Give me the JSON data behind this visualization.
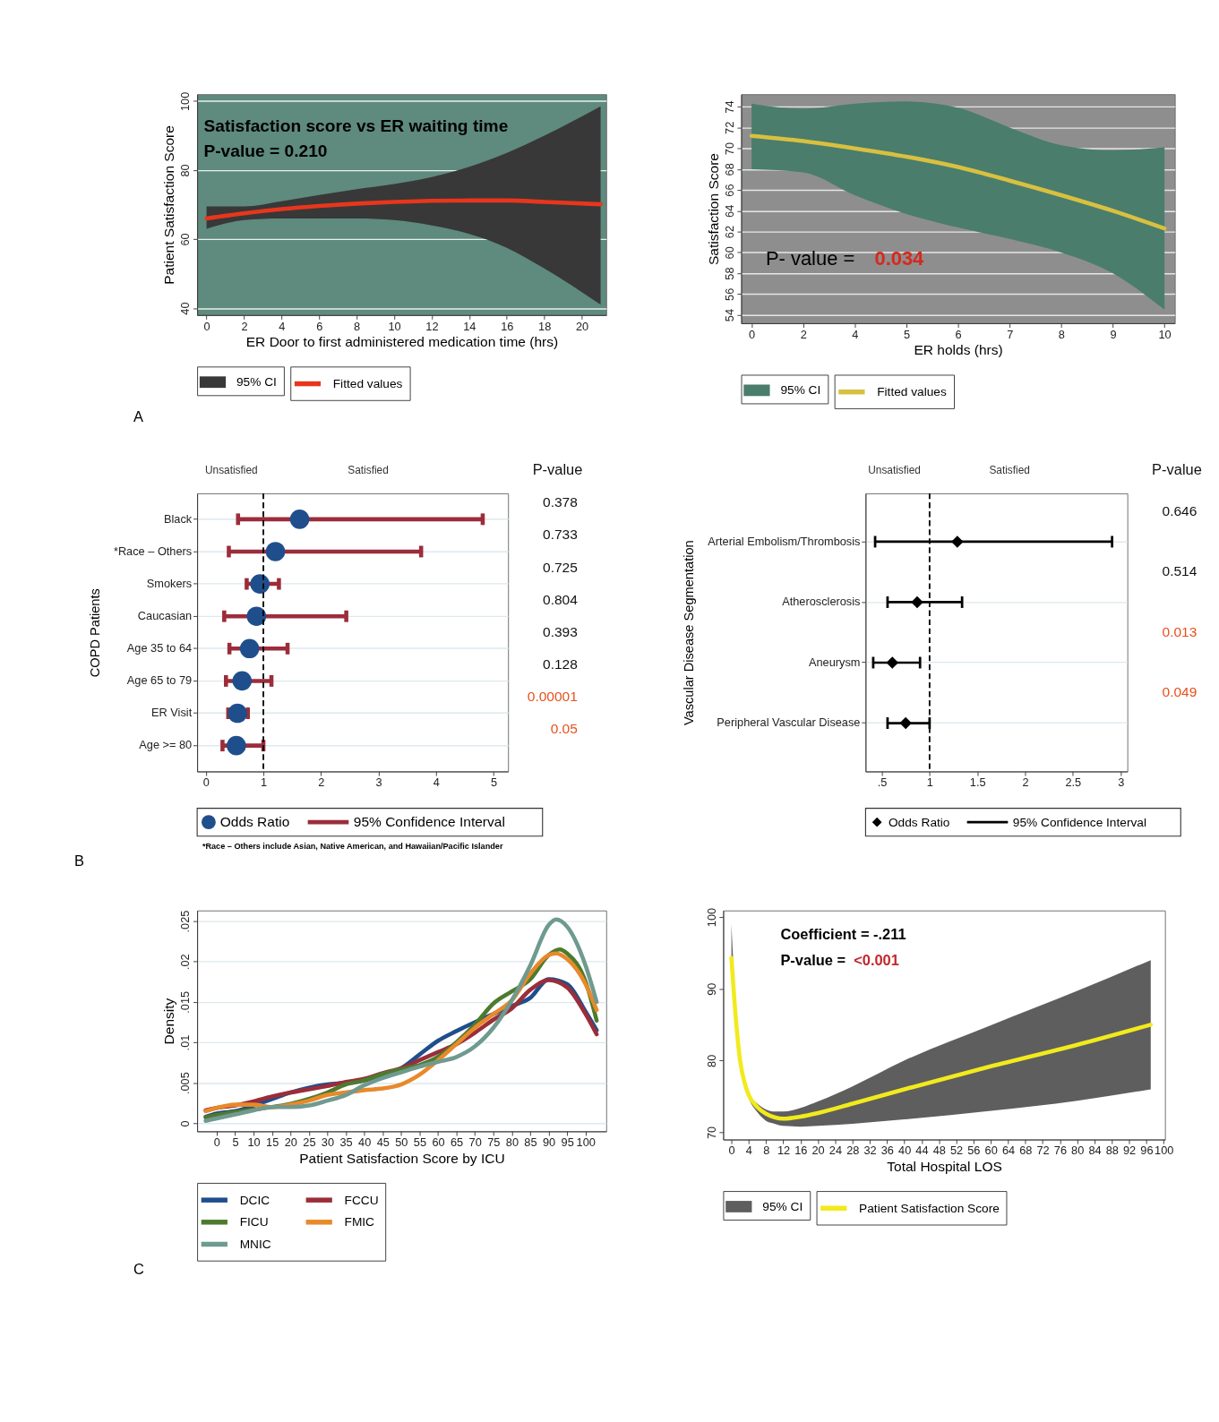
{
  "chart_data": [
    {
      "type": "line",
      "xlabel": "ER Door to first administered medication time (hrs)",
      "ylabel": "Patient Satisfaction Score",
      "x": [
        0,
        2,
        4,
        6,
        8,
        10,
        12,
        14,
        16,
        18,
        21
      ],
      "series": [
        {
          "name": "95% CI",
          "type": "area",
          "color": "#383838",
          "values": [
            null,
            null,
            null,
            null,
            null,
            null,
            null,
            null,
            null,
            null,
            null
          ],
          "lower": [
            63,
            65.5,
            66,
            66,
            66,
            65.5,
            64,
            61.5,
            57.5,
            51.5,
            41
          ],
          "upper": [
            69.5,
            69.5,
            71,
            72.8,
            74.5,
            76,
            78,
            81,
            85,
            90,
            98.5
          ]
        },
        {
          "name": "Fitted values",
          "type": "line",
          "color": "#e8361c",
          "values": [
            66,
            67.5,
            68.7,
            69.6,
            70.3,
            70.8,
            71.1,
            71.2,
            71.2,
            70.8,
            70.1
          ]
        }
      ],
      "xlim": [
        -0.5,
        21.3
      ],
      "xticks": [
        0,
        2,
        4,
        6,
        8,
        10,
        12,
        14,
        16,
        18,
        20
      ],
      "ylim": [
        38,
        102
      ],
      "yticks": [
        40,
        60,
        80,
        100
      ],
      "grid": "y",
      "legend": "bottom",
      "annotations": [
        "Satisfaction score vs ER waiting time",
        "P-value = 0.210",
        "A"
      ]
    },
    {
      "type": "line",
      "xlabel": "ER holds (hrs)",
      "ylabel": "Satisfaction Score",
      "categories": [
        "0",
        "2",
        "4",
        "5",
        "6",
        "7",
        "8",
        "9",
        "10"
      ],
      "series": [
        {
          "name": "95% CI",
          "type": "area",
          "color": "#4a7d6c",
          "values": [
            null,
            null,
            null,
            null,
            null,
            null,
            null,
            null,
            null
          ],
          "lower": [
            68.0,
            67.7,
            65.5,
            63.7,
            62.4,
            61.3,
            60.0,
            58.0,
            54.5
          ],
          "upper": [
            74.3,
            73.8,
            74.3,
            74.5,
            73.9,
            72.0,
            70.3,
            69.8,
            70.1
          ]
        },
        {
          "name": "Fitted values",
          "type": "line",
          "color": "#d8c040",
          "values": [
            71.2,
            70.7,
            70.0,
            69.2,
            68.2,
            66.9,
            65.5,
            64.0,
            62.3
          ]
        }
      ],
      "ylim": [
        53.2,
        75.2
      ],
      "yticks": [
        54,
        56,
        58,
        60,
        62,
        64,
        66,
        68,
        70,
        72,
        74
      ],
      "grid": "y",
      "legend": "bottom",
      "annotations": [
        "P- value =",
        "0.034"
      ]
    },
    {
      "type": "scatter",
      "orientation": "horizontal",
      "ylabel": "COPD Patients",
      "marker": "circle",
      "categories": [
        "Black",
        "*Race – Others",
        "Smokers",
        "Caucasian",
        "Age 35 to 64",
        "Age 65 to 79",
        "ER Visit",
        "Age >= 80"
      ],
      "series": [
        {
          "name": "Odds Ratio",
          "color": "#1f4e8c",
          "values": [
            1.63,
            1.21,
            0.94,
            0.88,
            0.76,
            0.63,
            0.55,
            0.53
          ],
          "errors": [
            [
              0.56,
              4.81
            ],
            [
              0.4,
              3.74
            ],
            [
              0.71,
              1.27
            ],
            [
              0.32,
              2.44
            ],
            [
              0.41,
              1.42
            ],
            [
              0.35,
              1.14
            ],
            [
              0.39,
              0.73
            ],
            [
              0.29,
              1.0
            ]
          ]
        }
      ],
      "xlim": [
        -0.15,
        5.25
      ],
      "xticks": [
        0,
        1,
        2,
        3,
        4,
        5
      ],
      "grid": "y",
      "legend": "bottom",
      "ref_lines": [
        {
          "axis": "x",
          "value": 1,
          "line_style": "dashed"
        }
      ],
      "annotations": [
        "Unsatisfied",
        "Satisfied",
        "P-value",
        "0.378",
        "0.733",
        "0.725",
        "0.804",
        "0.393",
        "0.128",
        "0.00001",
        "0.05",
        "95% Confidence Interval",
        "*Race – Others include Asian, Native American, and Hawaiian/Pacific Islander",
        "B"
      ]
    },
    {
      "type": "scatter",
      "orientation": "horizontal",
      "ylabel": "Vascular Disease Segmentation",
      "marker": "diamond",
      "categories": [
        "Arterial Embolism/Thrombosis",
        "Atherosclerosis",
        "Aneurysm",
        "Peripheral Vascular Disease"
      ],
      "series": [
        {
          "name": "Odds Ratio",
          "color": "#000000",
          "values": [
            1.29,
            0.87,
            0.61,
            0.75
          ],
          "errors": [
            [
              0.43,
              2.91
            ],
            [
              0.56,
              1.34
            ],
            [
              0.41,
              0.9
            ],
            [
              0.56,
              1.0
            ]
          ]
        }
      ],
      "xlim": [
        0.33,
        3.07
      ],
      "xticks": [
        {
          "value": 0.5,
          "label": ".5"
        },
        1,
        1.5,
        2,
        2.5,
        3
      ],
      "grid": "y",
      "legend": "bottom",
      "ref_lines": [
        {
          "axis": "x",
          "value": 1,
          "line_style": "dashed"
        }
      ],
      "annotations": [
        "Unsatisfied",
        "Satisfied",
        "P-value",
        "0.646",
        "0.514",
        "0.013",
        "0.049",
        "95% Confidence Interval"
      ]
    },
    {
      "type": "line",
      "xlabel": "Patient Satisfaction Score by ICU",
      "ylabel": "Density",
      "series": [
        {
          "name": "DCIC",
          "color": "#1f4e8c",
          "x": [
            -3,
            0,
            5,
            10,
            15,
            20,
            25,
            30,
            35,
            40,
            45,
            50,
            55,
            60,
            65,
            70,
            75,
            80,
            85,
            90,
            95,
            100,
            103
          ],
          "values": [
            0.0008,
            0.0012,
            0.0015,
            0.0022,
            0.003,
            0.0038,
            0.0044,
            0.0048,
            0.005,
            0.0053,
            0.006,
            0.0068,
            0.0085,
            0.0102,
            0.0114,
            0.0125,
            0.0135,
            0.0145,
            0.0155,
            0.0178,
            0.0172,
            0.0138,
            0.0115
          ]
        },
        {
          "name": "FCCU",
          "color": "#9b2d3a",
          "x": [
            -3,
            0,
            5,
            10,
            15,
            20,
            25,
            30,
            35,
            40,
            45,
            50,
            55,
            60,
            65,
            70,
            75,
            80,
            85,
            90,
            95,
            100,
            103
          ],
          "values": [
            0.0016,
            0.0019,
            0.0022,
            0.0027,
            0.0033,
            0.0038,
            0.0042,
            0.0046,
            0.0051,
            0.0055,
            0.0062,
            0.0068,
            0.0078,
            0.0088,
            0.0098,
            0.0112,
            0.0128,
            0.0142,
            0.0165,
            0.0177,
            0.0168,
            0.0135,
            0.011
          ]
        },
        {
          "name": "FICU",
          "color": "#4e7a2e",
          "x": [
            -3,
            0,
            5,
            10,
            15,
            20,
            25,
            30,
            35,
            40,
            45,
            50,
            55,
            60,
            65,
            70,
            75,
            80,
            85,
            90,
            93,
            95,
            100,
            103
          ],
          "values": [
            0.0007,
            0.001,
            0.0014,
            0.0017,
            0.002,
            0.0024,
            0.003,
            0.0038,
            0.0048,
            0.0053,
            0.0061,
            0.0067,
            0.0072,
            0.0082,
            0.01,
            0.0122,
            0.0148,
            0.0163,
            0.0178,
            0.0208,
            0.0215,
            0.021,
            0.0175,
            0.0127
          ]
        },
        {
          "name": "FMIC",
          "color": "#e8892a",
          "x": [
            -3,
            0,
            5,
            10,
            15,
            20,
            25,
            30,
            35,
            40,
            45,
            50,
            55,
            60,
            65,
            70,
            75,
            80,
            85,
            90,
            92,
            95,
            100,
            103
          ],
          "values": [
            0.0015,
            0.0019,
            0.0023,
            0.0023,
            0.002,
            0.0023,
            0.0028,
            0.0035,
            0.0038,
            0.0041,
            0.0043,
            0.0048,
            0.006,
            0.0078,
            0.0098,
            0.0118,
            0.0135,
            0.0152,
            0.0185,
            0.0208,
            0.021,
            0.0203,
            0.0172,
            0.014
          ]
        },
        {
          "name": "MNIC",
          "color": "#6f9a8f",
          "x": [
            -3,
            0,
            5,
            10,
            15,
            20,
            25,
            30,
            35,
            40,
            45,
            50,
            55,
            60,
            65,
            70,
            75,
            80,
            85,
            90,
            92,
            95,
            100,
            103
          ],
          "values": [
            0.0003,
            0.0006,
            0.0011,
            0.0016,
            0.002,
            0.002,
            0.0022,
            0.0028,
            0.0035,
            0.0047,
            0.0056,
            0.0063,
            0.007,
            0.0076,
            0.0082,
            0.0095,
            0.0118,
            0.0152,
            0.0195,
            0.0245,
            0.0252,
            0.0243,
            0.0195,
            0.015
          ]
        }
      ],
      "xlim": [
        -5.3,
        105.6
      ],
      "xticks": [
        0,
        5,
        10,
        15,
        20,
        25,
        30,
        35,
        40,
        45,
        50,
        55,
        60,
        65,
        70,
        75,
        80,
        85,
        90,
        95,
        100
      ],
      "ylim": [
        -0.001,
        0.0263
      ],
      "yticks": [
        0,
        {
          "value": 0.005,
          "label": ".005"
        },
        {
          "value": 0.01,
          "label": ".01"
        },
        {
          "value": 0.015,
          "label": ".015"
        },
        {
          "value": 0.02,
          "label": ".02"
        },
        {
          "value": 0.025,
          "label": ".025"
        }
      ],
      "grid": "y",
      "legend": "bottom",
      "annotations": [
        "C"
      ]
    },
    {
      "type": "line",
      "xlabel": "Total Hospital LOS",
      "x": [
        0,
        1,
        2,
        3,
        4,
        6,
        8,
        10,
        12,
        16,
        20,
        28,
        40,
        60,
        80,
        97
      ],
      "series": [
        {
          "name": "95% CI",
          "type": "area",
          "color": "#5e5e5e",
          "values": [
            null,
            null,
            null,
            null,
            null,
            null,
            null,
            null,
            null,
            null,
            null,
            null,
            null,
            null,
            null,
            null
          ],
          "lower": [
            94,
            85,
            79.5,
            76.5,
            74.7,
            72.8,
            71.6,
            71.2,
            70.9,
            70.8,
            70.9,
            71.2,
            71.8,
            73.0,
            74.4,
            76
          ],
          "upper": [
            99,
            87.5,
            80.5,
            77.3,
            75.4,
            74,
            73.2,
            72.9,
            72.9,
            73.4,
            74.3,
            76.4,
            80.0,
            84.9,
            89.7,
            94
          ]
        },
        {
          "name": "Patient Satisfaction Score",
          "type": "line",
          "color": "#f2ea1c",
          "values": [
            94.3,
            86,
            80,
            77,
            75.2,
            73.5,
            72.6,
            72.1,
            71.9,
            72.2,
            72.7,
            74.0,
            76,
            79.2,
            82.2,
            85
          ]
        }
      ],
      "xlim": [
        -1.9,
        100.3
      ],
      "xticks": [
        0,
        4,
        8,
        12,
        16,
        20,
        24,
        28,
        32,
        36,
        40,
        44,
        48,
        52,
        56,
        60,
        64,
        68,
        72,
        76,
        80,
        84,
        88,
        92,
        96,
        100
      ],
      "ylim": [
        69,
        100.9
      ],
      "yticks": [
        70,
        80,
        90,
        100
      ],
      "legend": "bottom",
      "annotations": [
        "Coefficient = -.211",
        "P-value =",
        "<0.001"
      ]
    }
  ]
}
